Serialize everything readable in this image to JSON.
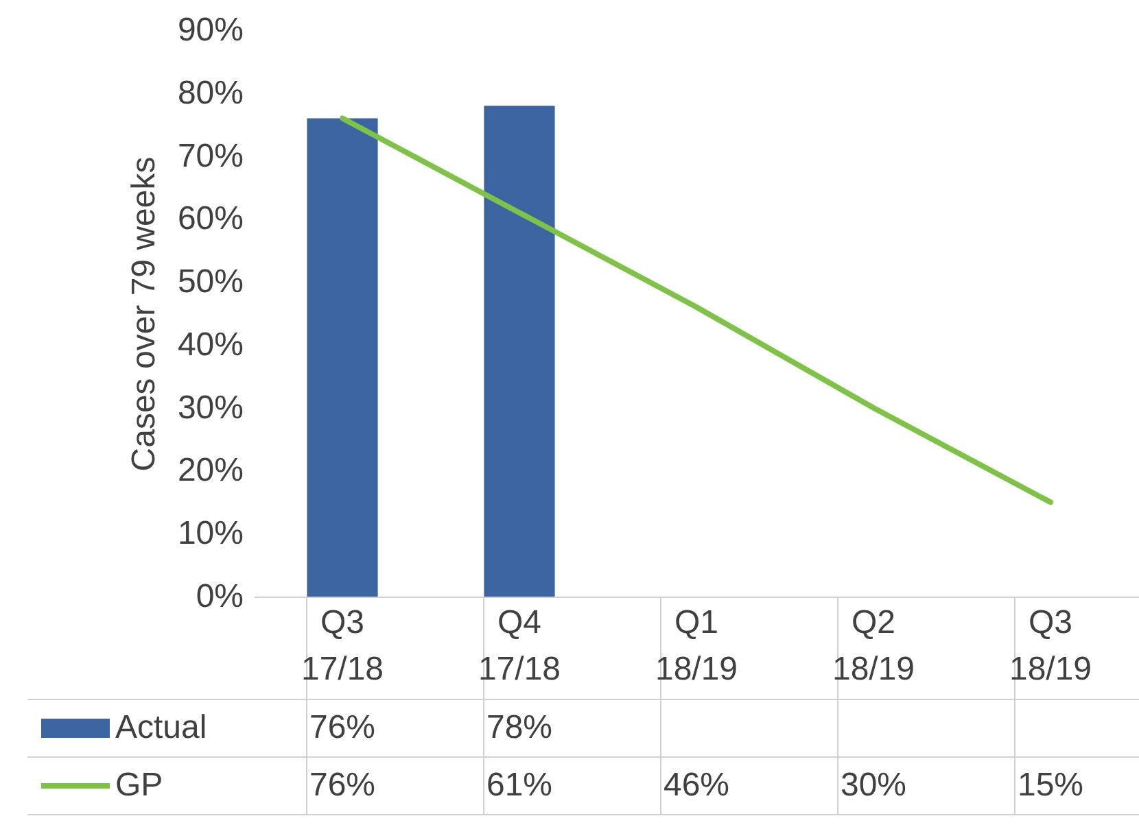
{
  "chart_data": {
    "type": "bar",
    "ylabel": "Cases over 79 weeks",
    "categories": [
      "Q3 17/18",
      "Q4 17/18",
      "Q1 18/19",
      "Q2 18/19",
      "Q3 18/19"
    ],
    "series": [
      {
        "name": "Actual",
        "color": "#3b64a0",
        "values": [
          76,
          78,
          null,
          null,
          null
        ],
        "value_labels": [
          "76%",
          "78%",
          null,
          null,
          null
        ]
      },
      {
        "name": "GP",
        "type": "line",
        "color": "#7ec247",
        "values": [
          76,
          61,
          46,
          30,
          15
        ],
        "value_labels": [
          "76%",
          "61%",
          "46%",
          "30%",
          "15%"
        ]
      }
    ],
    "ylim": [
      0,
      90
    ],
    "yticks": [
      {
        "value": 0,
        "label": "0%"
      },
      {
        "value": 10,
        "label": "10%"
      },
      {
        "value": 20,
        "label": "20%"
      },
      {
        "value": 30,
        "label": "30%"
      },
      {
        "value": 40,
        "label": "40%"
      },
      {
        "value": 50,
        "label": "50%"
      },
      {
        "value": 60,
        "label": "60%"
      },
      {
        "value": 70,
        "label": "70%"
      },
      {
        "value": 80,
        "label": "80%"
      },
      {
        "value": 90,
        "label": "90%"
      }
    ],
    "legend": "bottom"
  }
}
